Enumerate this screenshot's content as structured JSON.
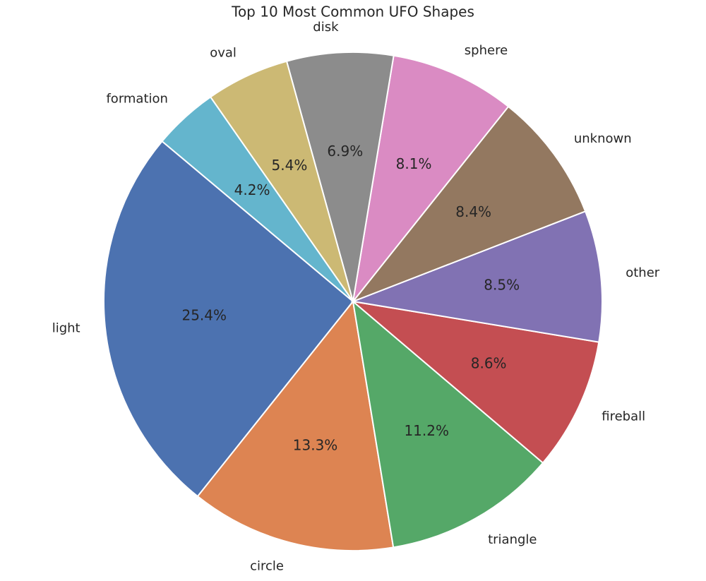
{
  "chart_data": {
    "type": "pie",
    "title": "Top 10 Most Common UFO Shapes",
    "categories": [
      "light",
      "circle",
      "triangle",
      "fireball",
      "other",
      "unknown",
      "sphere",
      "disk",
      "oval",
      "formation"
    ],
    "values": [
      25.4,
      13.3,
      11.2,
      8.6,
      8.5,
      8.4,
      8.1,
      6.9,
      5.4,
      4.2
    ],
    "value_labels": [
      "25.4%",
      "13.3%",
      "11.2%",
      "8.6%",
      "8.5%",
      "8.4%",
      "8.1%",
      "6.9%",
      "5.4%",
      "4.2%"
    ],
    "colors": [
      "#4c72b0",
      "#dd8452",
      "#55a868",
      "#c44e52",
      "#8172b3",
      "#937860",
      "#da8bc3",
      "#8c8c8c",
      "#ccb974",
      "#64b5cd"
    ]
  }
}
